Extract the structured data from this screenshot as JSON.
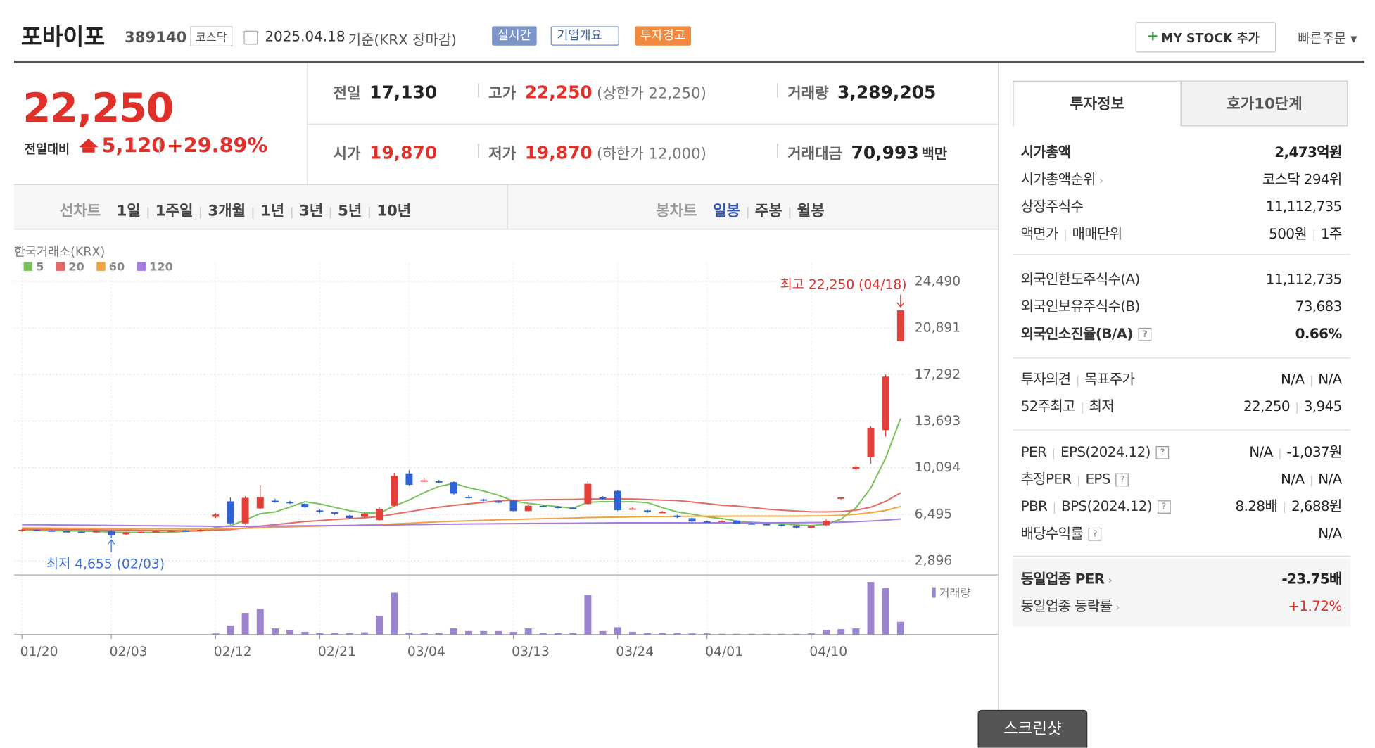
{
  "header": {
    "name": "포바이포",
    "code": "389140",
    "market": "코스닥",
    "date": "2025.04.18",
    "basis": "기준(KRX 장마감)",
    "tags": [
      "실시간",
      "기업개요",
      "투자경고"
    ],
    "my_stock": "MY STOCK 추가",
    "quick_order": "빠른주문"
  },
  "price": {
    "current": "22,250",
    "change_label": "전일대비",
    "change": "5,120",
    "change_rate": "+29.89%"
  },
  "summary": [
    {
      "label": "전일",
      "value": "17,130"
    },
    {
      "label": "고가",
      "value": "22,250",
      "note": "(상한가 22,250)",
      "color": "#e0302a"
    },
    {
      "label": "거래량",
      "value": "3,289,205"
    },
    {
      "label": "시가",
      "value": "19,870",
      "color": "#e0302a"
    },
    {
      "label": "저가",
      "value": "19,870",
      "note": "(하한가 12,000)",
      "color": "#e0302a"
    },
    {
      "label": "거래대금",
      "value": "70,993",
      "unit": "백만"
    }
  ],
  "tabs": {
    "line_chart": "선차트",
    "line_periods": [
      "1일",
      "1주일",
      "3개월",
      "1년",
      "3년",
      "5년",
      "10년"
    ],
    "candle_chart": "봉차트",
    "candle_periods": [
      "일봉",
      "주봉",
      "월봉"
    ]
  },
  "chart_data": {
    "type": "candlestick",
    "title": "한국거래소(KRX)",
    "categories": [
      "01/20",
      null,
      null,
      null,
      null,
      null,
      "02/03",
      null,
      null,
      null,
      null,
      null,
      null,
      "02/12",
      null,
      null,
      null,
      null,
      null,
      null,
      "02/21",
      null,
      null,
      null,
      null,
      null,
      "03/04",
      null,
      null,
      null,
      null,
      null,
      null,
      "03/13",
      null,
      null,
      null,
      null,
      null,
      null,
      "03/24",
      null,
      null,
      null,
      null,
      null,
      "04/01",
      null,
      null,
      null,
      null,
      null,
      null,
      "04/10",
      null,
      null,
      null,
      null,
      null,
      null
    ],
    "open": [
      5200,
      5300,
      5250,
      5200,
      5150,
      5100,
      5200,
      4950,
      5100,
      5150,
      5200,
      5250,
      5200,
      6300,
      7500,
      5800,
      6950,
      7550,
      7450,
      7300,
      6800,
      6650,
      6400,
      6300,
      6050,
      7160,
      9660,
      9100,
      9050,
      8980,
      7850,
      7650,
      7500,
      7560,
      6750,
      7150,
      7080,
      7000,
      7290,
      7800,
      8310,
      6900,
      6800,
      6650,
      6400,
      6200,
      5950,
      5950,
      6000,
      5800,
      5750,
      5700,
      5600,
      5450,
      5650,
      7700,
      10000,
      10900,
      13000,
      19870
    ],
    "high": [
      5350,
      5350,
      5300,
      5250,
      5200,
      5250,
      5250,
      5150,
      5200,
      5250,
      5300,
      5300,
      5350,
      6600,
      7800,
      7900,
      8780,
      7700,
      7550,
      7350,
      6900,
      6700,
      6450,
      6600,
      7050,
      9700,
      9900,
      9300,
      9150,
      9050,
      7950,
      7700,
      7550,
      7650,
      7250,
      7250,
      7150,
      7050,
      9100,
      7900,
      8400,
      7050,
      6850,
      6750,
      6450,
      6250,
      6000,
      6050,
      6050,
      5850,
      5800,
      5750,
      5650,
      5650,
      6100,
      7800,
      10300,
      13300,
      17300,
      22250
    ],
    "low": [
      5150,
      5200,
      5150,
      5100,
      5050,
      5050,
      4655,
      4900,
      5050,
      5100,
      5150,
      5150,
      5150,
      6200,
      5700,
      5700,
      6900,
      7400,
      7300,
      7000,
      6600,
      6450,
      6150,
      6250,
      6000,
      7100,
      8700,
      9000,
      8900,
      8000,
      7700,
      7500,
      7350,
      6700,
      6700,
      7050,
      6950,
      6900,
      7250,
      7600,
      6750,
      6850,
      6600,
      6600,
      6200,
      5900,
      5900,
      5900,
      5750,
      5700,
      5700,
      5550,
      5400,
      5400,
      5600,
      7600,
      9900,
      10400,
      12500,
      19870
    ],
    "close": [
      5300,
      5250,
      5200,
      5150,
      5100,
      5200,
      4900,
      5100,
      5150,
      5200,
      5250,
      5200,
      5300,
      6480,
      5800,
      7770,
      7830,
      7500,
      7400,
      7050,
      6700,
      6550,
      6220,
      6550,
      6930,
      9460,
      8780,
      9120,
      8980,
      8100,
      7770,
      7560,
      7430,
      6750,
      7160,
      7100,
      7020,
      6950,
      8850,
      7700,
      6820,
      6950,
      6680,
      6680,
      6280,
      5940,
      5940,
      6000,
      5800,
      5740,
      5740,
      5600,
      5470,
      5600,
      6000,
      7800,
      10140,
      13180,
      17130,
      22250
    ],
    "volume": [
      60000,
      50000,
      40000,
      45000,
      50000,
      40000,
      80000,
      50000,
      40000,
      35000,
      40000,
      30000,
      60000,
      300000,
      2350000,
      5600000,
      6600000,
      1600000,
      1200000,
      700000,
      400000,
      400000,
      400000,
      600000,
      4900000,
      10800000,
      500000,
      400000,
      400000,
      1600000,
      900000,
      900000,
      900000,
      700000,
      1600000,
      400000,
      400000,
      400000,
      10300000,
      900000,
      1900000,
      700000,
      400000,
      400000,
      400000,
      300000,
      300000,
      200000,
      200000,
      200000,
      200000,
      200000,
      200000,
      300000,
      1200000,
      1400000,
      1600000,
      13600000,
      12000000,
      3289205
    ],
    "up_color": "#e3403a",
    "down_color": "#2d63d4",
    "volume_color": "#9c84cf",
    "volume_label": "거래량",
    "moving_averages": [
      {
        "name": "5",
        "color": "#79c25a",
        "values": [
          5250,
          5240,
          5230,
          5220,
          5200,
          5180,
          5120,
          5110,
          5110,
          5110,
          5120,
          5180,
          5220,
          5480,
          5610,
          6070,
          6540,
          6680,
          7060,
          7470,
          7300,
          7040,
          6780,
          6610,
          6590,
          7140,
          7600,
          8170,
          8650,
          8890,
          8550,
          8300,
          7970,
          7530,
          7340,
          7210,
          7090,
          6970,
          7420,
          7480,
          7460,
          7470,
          7400,
          7020,
          6680,
          6510,
          6300,
          6170,
          5990,
          5880,
          5840,
          5770,
          5670,
          5630,
          5720,
          6120,
          7000,
          8540,
          10850,
          13900
        ]
      },
      {
        "name": "20",
        "color": "#e46a66",
        "values": [
          5350,
          5340,
          5330,
          5320,
          5310,
          5300,
          5280,
          5270,
          5260,
          5250,
          5240,
          5230,
          5230,
          5290,
          5320,
          5440,
          5580,
          5700,
          5820,
          5940,
          6010,
          6100,
          6160,
          6230,
          6320,
          6520,
          6700,
          6890,
          7050,
          7190,
          7310,
          7420,
          7540,
          7580,
          7600,
          7630,
          7640,
          7650,
          7680,
          7680,
          7690,
          7680,
          7640,
          7590,
          7560,
          7450,
          7320,
          7200,
          7130,
          7020,
          6900,
          6820,
          6750,
          6690,
          6680,
          6710,
          6820,
          7050,
          7500,
          8150
        ]
      },
      {
        "name": "60",
        "color": "#f0a33e",
        "values": [
          5450,
          5440,
          5430,
          5420,
          5410,
          5400,
          5390,
          5380,
          5380,
          5370,
          5370,
          5360,
          5360,
          5380,
          5390,
          5420,
          5460,
          5500,
          5530,
          5560,
          5590,
          5620,
          5640,
          5670,
          5700,
          5760,
          5810,
          5870,
          5920,
          5960,
          6000,
          6040,
          6070,
          6100,
          6130,
          6160,
          6180,
          6210,
          6250,
          6270,
          6280,
          6300,
          6320,
          6330,
          6340,
          6350,
          6350,
          6350,
          6360,
          6360,
          6360,
          6360,
          6360,
          6370,
          6380,
          6420,
          6500,
          6620,
          6800,
          7100
        ]
      },
      {
        "name": "120",
        "color": "#a57de0",
        "values": [
          5700,
          5690,
          5680,
          5670,
          5660,
          5650,
          5640,
          5630,
          5620,
          5610,
          5600,
          5590,
          5580,
          5570,
          5570,
          5570,
          5580,
          5590,
          5600,
          5610,
          5620,
          5630,
          5640,
          5650,
          5660,
          5680,
          5700,
          5710,
          5730,
          5740,
          5750,
          5760,
          5770,
          5780,
          5790,
          5800,
          5800,
          5810,
          5820,
          5830,
          5840,
          5840,
          5840,
          5840,
          5840,
          5840,
          5840,
          5840,
          5840,
          5840,
          5840,
          5850,
          5850,
          5860,
          5870,
          5890,
          5930,
          5980,
          6050,
          6140
        ]
      }
    ],
    "ylim": [
      2896,
      24490
    ],
    "yticks": [
      {
        "value": 2896,
        "label": "2,896"
      },
      {
        "value": 6495,
        "label": "6,495"
      },
      {
        "value": 10094,
        "label": "10,094"
      },
      {
        "value": 13693,
        "label": "13,693"
      },
      {
        "value": 17292,
        "label": "17,292"
      },
      {
        "value": 20891,
        "label": "20,891"
      },
      {
        "value": 24490,
        "label": "24,490"
      }
    ],
    "grid": true,
    "high_label": "최고 22,250 (04/18)",
    "low_label": "최저 4,655 (02/03)"
  },
  "side": {
    "tabs": [
      "투자정보",
      "호가10단계"
    ],
    "groups": [
      [
        {
          "label": [
            "시가총액"
          ],
          "value": [
            "2,473억원"
          ],
          "bold": true
        },
        {
          "label": [
            "시가총액순위"
          ],
          "value": [
            "코스닥 294위"
          ],
          "link": true
        },
        {
          "label": [
            "상장주식수"
          ],
          "value": [
            "11,112,735"
          ]
        },
        {
          "label": [
            "액면가",
            "매매단위"
          ],
          "value": [
            "500원",
            "1주"
          ]
        }
      ],
      [
        {
          "label": [
            "외국인한도주식수(A)"
          ],
          "value": [
            "11,112,735"
          ]
        },
        {
          "label": [
            "외국인보유주식수(B)"
          ],
          "value": [
            "73,683"
          ]
        },
        {
          "label": [
            "외국인소진율(B/A)"
          ],
          "value": [
            "0.66%"
          ],
          "bold": true,
          "help": true
        }
      ],
      [
        {
          "label": [
            "투자의견",
            "목표주가"
          ],
          "value": [
            "N/A",
            "N/A"
          ]
        },
        {
          "label": [
            "52주최고",
            "최저"
          ],
          "value": [
            "22,250",
            "3,945"
          ]
        }
      ],
      [
        {
          "label": [
            "PER",
            "EPS(2024.12)"
          ],
          "value": [
            "N/A",
            "-1,037원"
          ],
          "help": true
        },
        {
          "label": [
            "추정PER",
            "EPS"
          ],
          "value": [
            "N/A",
            "N/A"
          ],
          "help": true
        },
        {
          "label": [
            "PBR",
            "BPS(2024.12)"
          ],
          "value": [
            "8.28배",
            "2,688원"
          ],
          "help": true
        },
        {
          "label": [
            "배당수익률"
          ],
          "value": [
            "N/A"
          ],
          "help": true
        }
      ],
      [
        {
          "label": [
            "동일업종 PER"
          ],
          "value": [
            "-23.75배"
          ],
          "bold": true,
          "link": true
        },
        {
          "label": [
            "동일업종 등락률"
          ],
          "value": [
            "+1.72%"
          ],
          "link": true,
          "color": "#e0302a"
        }
      ]
    ]
  },
  "screenshot": "스크린샷"
}
